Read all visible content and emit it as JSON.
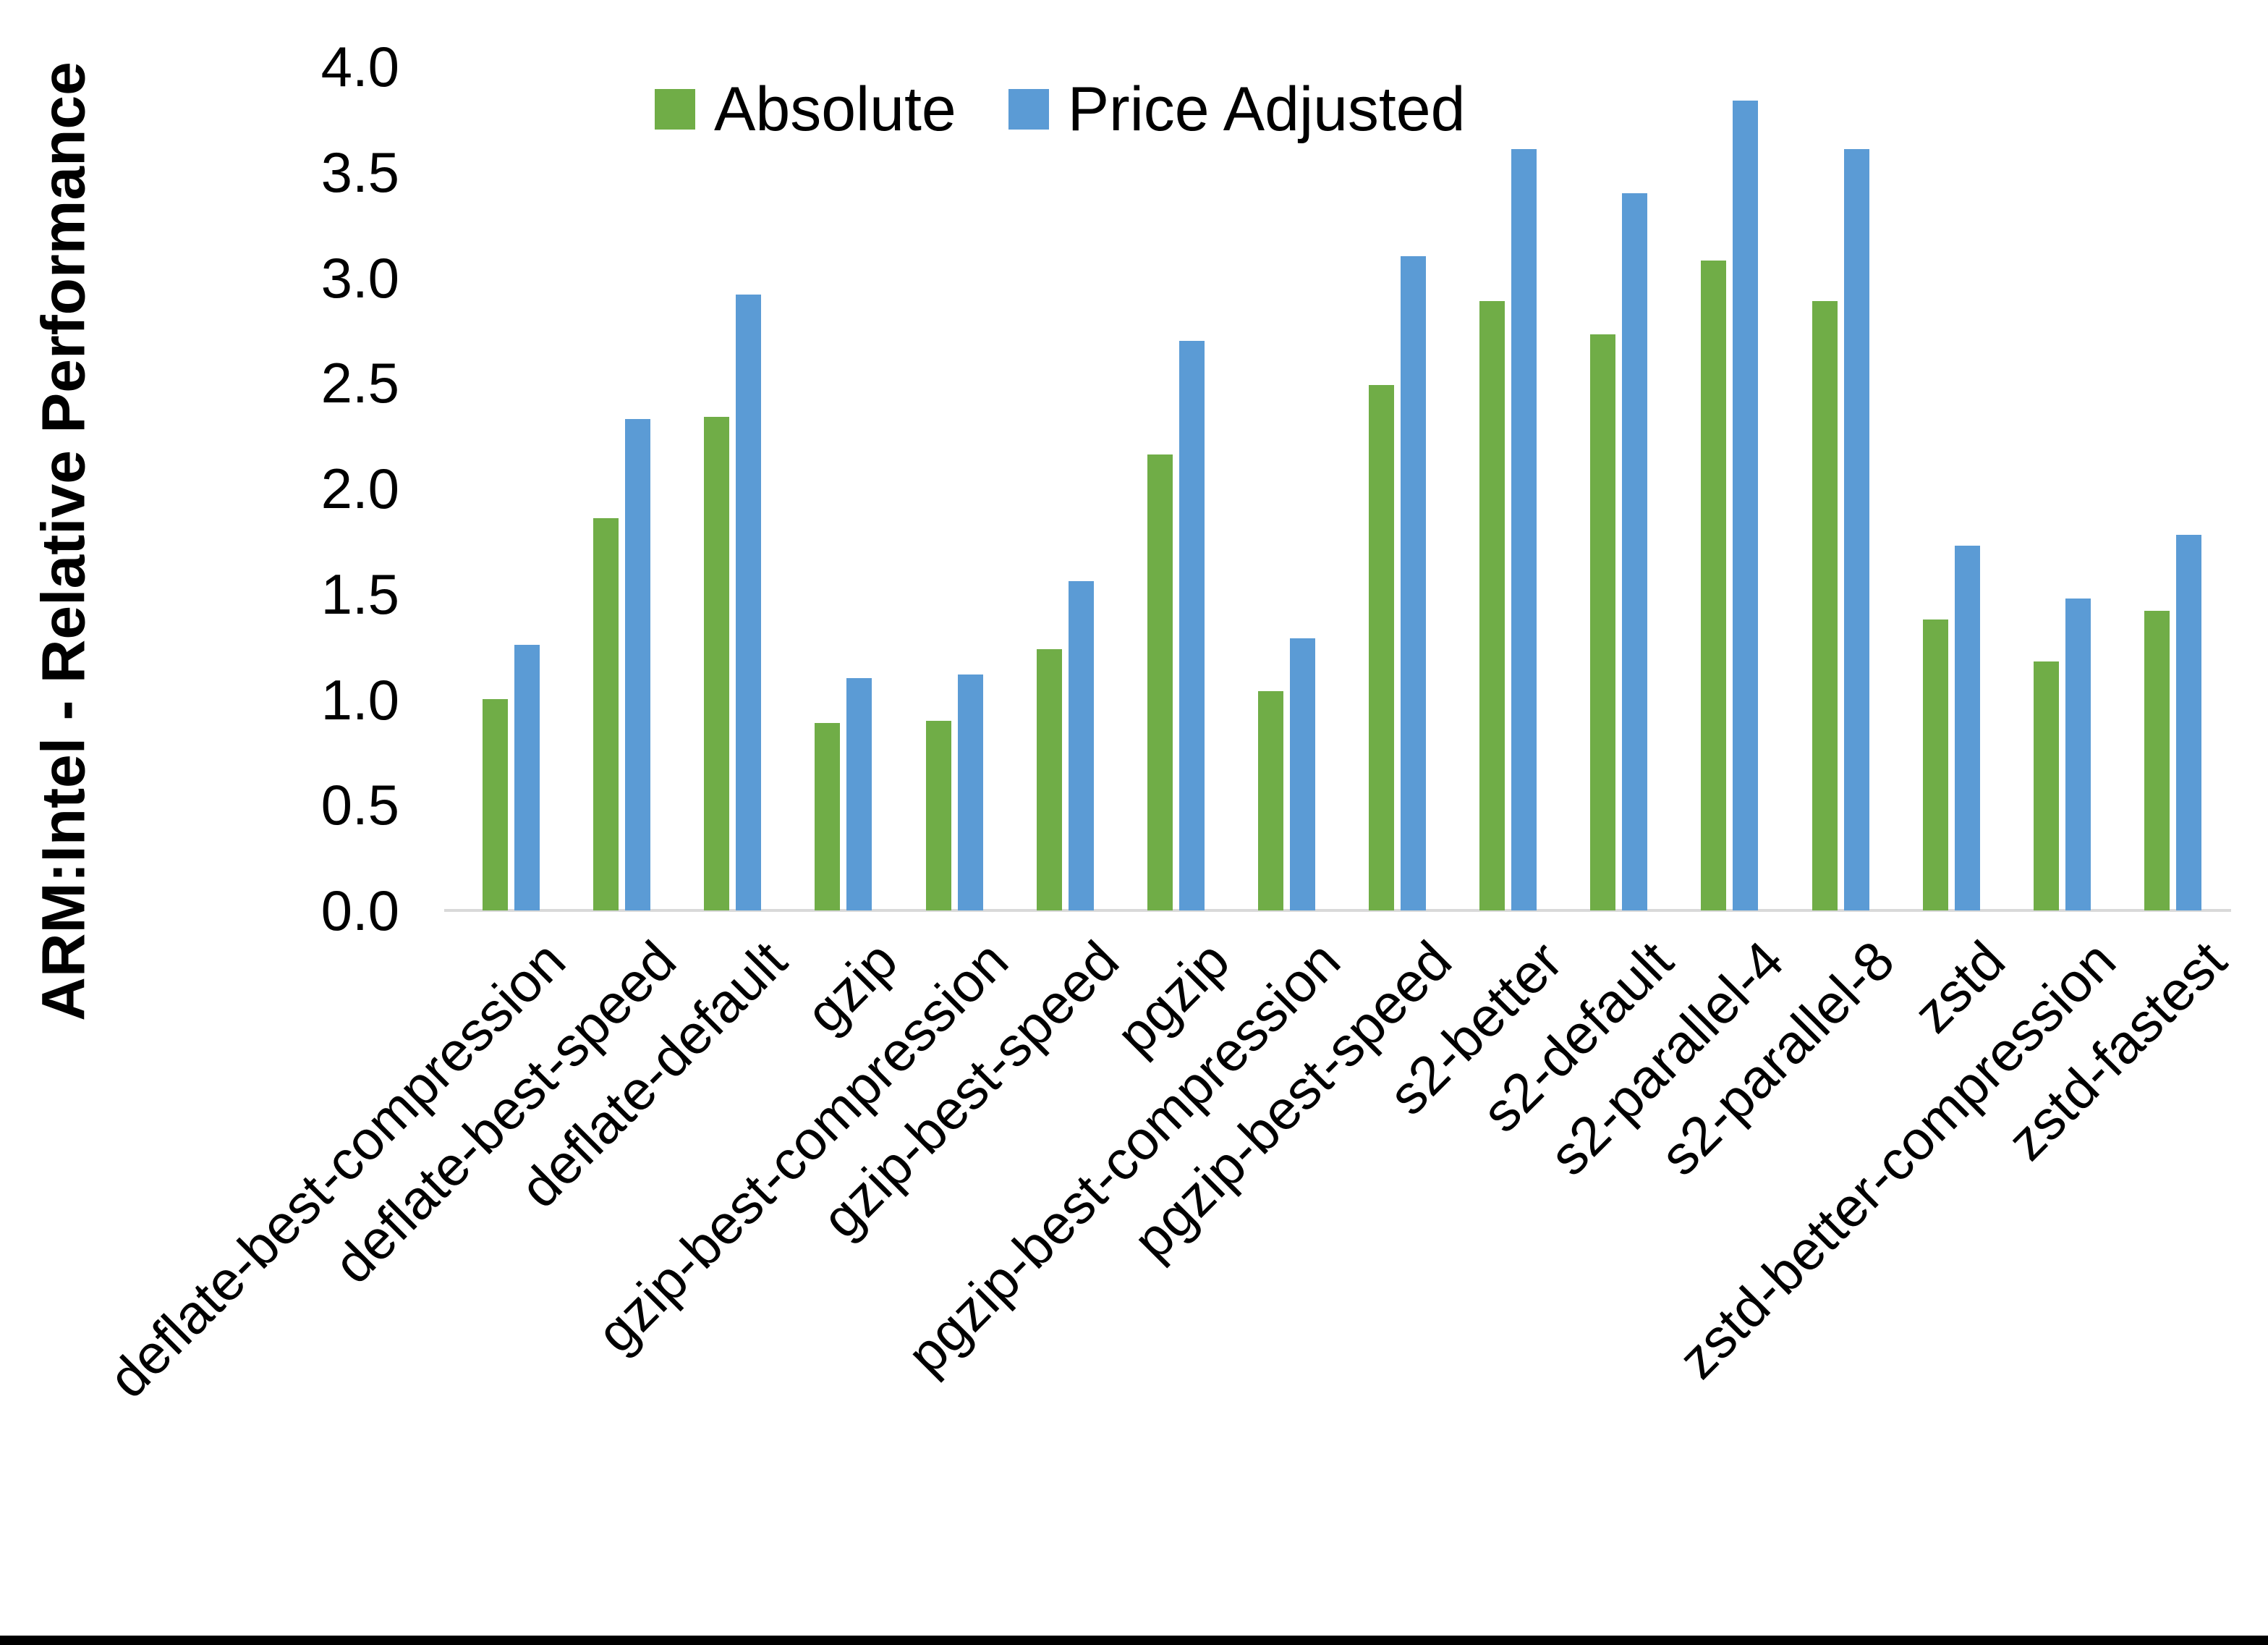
{
  "chart_data": {
    "type": "bar",
    "title": "",
    "xlabel": "",
    "ylabel": "ARM:Intel - Relative Performance",
    "ylim": [
      0.0,
      4.0
    ],
    "ytick_step": 0.5,
    "grid": false,
    "legend_position": "top",
    "categories": [
      "deflate-best-compression",
      "deflate-best-speed",
      "deflate-default",
      "gzip",
      "gzip-best-compression",
      "gzip-best-speed",
      "pgzip",
      "pgzip-best-compression",
      "pgzip-best-speed",
      "s2-better",
      "s2-default",
      "s2-parallel-4",
      "s2-parallel-8",
      "zstd",
      "zstd-better-compression",
      "zstd-fastest"
    ],
    "series": [
      {
        "name": "Absolute",
        "color": "#70AD47",
        "values": [
          1.0,
          1.86,
          2.34,
          0.89,
          0.9,
          1.24,
          2.16,
          1.04,
          2.49,
          2.89,
          2.73,
          3.08,
          2.89,
          1.38,
          1.18,
          1.42
        ]
      },
      {
        "name": "Price Adjusted",
        "color": "#5B9BD5",
        "values": [
          1.26,
          2.33,
          2.92,
          1.1,
          1.12,
          1.56,
          2.7,
          1.29,
          3.1,
          3.61,
          3.4,
          3.84,
          3.61,
          1.73,
          1.48,
          1.78
        ]
      }
    ],
    "ytick_labels": [
      "0.0",
      "0.5",
      "1.0",
      "1.5",
      "2.0",
      "2.5",
      "3.0",
      "3.5",
      "4.0"
    ]
  },
  "colors": {
    "axis_line": "#d9d9d9",
    "text": "#000000",
    "background": "#ffffff",
    "bottom_border": "#000000"
  }
}
